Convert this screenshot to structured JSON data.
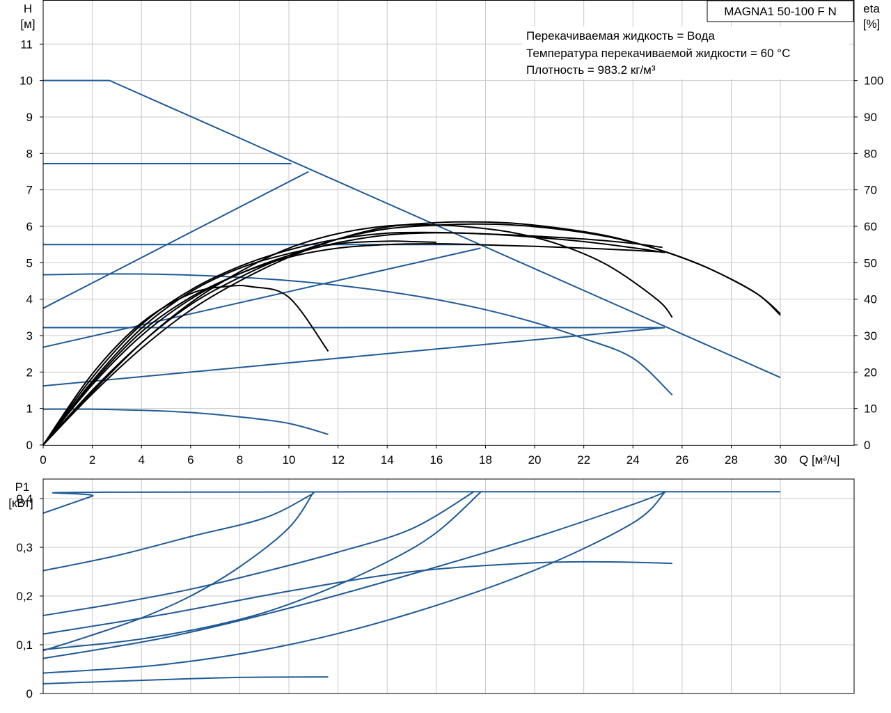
{
  "chart_data": [
    {
      "type": "line",
      "name": "head-efficiency",
      "title": "MAGNA1 50-100 F N",
      "notes": [
        "Перекачиваемая жидкость = Вода",
        "Температура перекачиваемой жидкости = 60 °C",
        "Плотность = 983.2 кг/м³"
      ],
      "xlabel": "Q [м³/ч]",
      "ylabel_left_name": "H",
      "ylabel_left_unit": "[м]",
      "ylabel_right_name": "eta",
      "ylabel_right_unit": "[%]",
      "xlim": [
        0,
        33
      ],
      "ylim_left": [
        0,
        12.2
      ],
      "ylim_right": [
        0,
        122
      ],
      "x_ticks": [
        "0",
        "2",
        "4",
        "6",
        "8",
        "10",
        "12",
        "14",
        "16",
        "18",
        "20",
        "22",
        "24",
        "26",
        "28",
        "30"
      ],
      "y_left_ticks": [
        "0",
        "1",
        "2",
        "3",
        "4",
        "5",
        "6",
        "7",
        "8",
        "9",
        "10",
        "11"
      ],
      "y_right_ticks": [
        "0",
        "10",
        "20",
        "30",
        "40",
        "50",
        "60",
        "70",
        "80",
        "90",
        "100"
      ],
      "grid": true,
      "colors": {
        "head": "#1f5a96",
        "efficiency": "#000000"
      },
      "head_series": [
        {
          "points": [
            [
              0,
              10.0
            ],
            [
              2.7,
              10.0
            ],
            [
              30,
              1.85
            ]
          ]
        },
        {
          "points": [
            [
              0,
              7.72
            ],
            [
              10.1,
              7.72
            ]
          ]
        },
        {
          "points": [
            [
              0,
              5.5
            ],
            [
              17.5,
              5.5
            ]
          ]
        },
        {
          "points": [
            [
              0,
              3.22
            ],
            [
              25.2,
              3.22
            ]
          ]
        },
        {
          "points": [
            [
              0,
              3.75
            ],
            [
              10.8,
              7.5
            ]
          ]
        },
        {
          "points": [
            [
              0,
              2.68
            ],
            [
              17.8,
              5.4
            ]
          ]
        },
        {
          "points": [
            [
              0,
              1.62
            ],
            [
              25.3,
              3.22
            ]
          ]
        },
        {
          "points": [
            [
              0,
              4.67
            ],
            [
              2,
              4.69
            ],
            [
              4,
              4.69
            ],
            [
              6,
              4.66
            ],
            [
              8,
              4.6
            ],
            [
              10,
              4.51
            ],
            [
              12,
              4.38
            ],
            [
              14,
              4.21
            ],
            [
              16,
              3.99
            ],
            [
              18,
              3.71
            ],
            [
              20,
              3.36
            ],
            [
              22,
              2.92
            ],
            [
              24,
              2.38
            ],
            [
              25.6,
              1.37
            ]
          ]
        },
        {
          "points": [
            [
              0,
              0.98
            ],
            [
              2,
              0.98
            ],
            [
              4,
              0.95
            ],
            [
              6,
              0.89
            ],
            [
              8,
              0.77
            ],
            [
              10,
              0.59
            ],
            [
              11.6,
              0.29
            ]
          ]
        }
      ],
      "efficiency_series": [
        {
          "points": [
            [
              0,
              0
            ],
            [
              2,
              19.5
            ],
            [
              4,
              33.5
            ],
            [
              6,
              41.5
            ],
            [
              7.5,
              43.5
            ],
            [
              8.5,
              43.4
            ],
            [
              10,
              40.5
            ],
            [
              11.6,
              25.7
            ]
          ]
        },
        {
          "points": [
            [
              0,
              0
            ],
            [
              2,
              17
            ],
            [
              4,
              31
            ],
            [
              6,
              40.5
            ],
            [
              8,
              47
            ],
            [
              10,
              51.5
            ],
            [
              12,
              54
            ],
            [
              14,
              55
            ],
            [
              16,
              55.2
            ],
            [
              18,
              54.9
            ],
            [
              20,
              54.5
            ],
            [
              22,
              54
            ],
            [
              24,
              53.4
            ],
            [
              25.3,
              52.9
            ]
          ]
        },
        {
          "points": [
            [
              0,
              0
            ],
            [
              2,
              16.5
            ],
            [
              4,
              30
            ],
            [
              6,
              40
            ],
            [
              8,
              47
            ],
            [
              10,
              52
            ],
            [
              12,
              55.5
            ],
            [
              14,
              57.6
            ],
            [
              16,
              58.2
            ],
            [
              18,
              57.9
            ],
            [
              20,
              57
            ],
            [
              22,
              55.8
            ],
            [
              24,
              54.1
            ],
            [
              25.3,
              52.8
            ]
          ]
        },
        {
          "points": [
            [
              0,
              0
            ],
            [
              2,
              15
            ],
            [
              4,
              28
            ],
            [
              6,
              38.5
            ],
            [
              8,
              46
            ],
            [
              10,
              52
            ],
            [
              12,
              56.5
            ],
            [
              14,
              59.3
            ],
            [
              16,
              60.3
            ],
            [
              17.5,
              60.6
            ],
            [
              19,
              60.4
            ],
            [
              21,
              59.2
            ],
            [
              23,
              57.1
            ],
            [
              25,
              53.7
            ],
            [
              27,
              48.7
            ],
            [
              29,
              41.7
            ],
            [
              30,
              36
            ]
          ]
        },
        {
          "points": [
            [
              0,
              0
            ],
            [
              2,
              14
            ],
            [
              4,
              26.5
            ],
            [
              6,
              37
            ],
            [
              8,
              45
            ],
            [
              10,
              51.5
            ],
            [
              12,
              56.5
            ],
            [
              14,
              59.8
            ],
            [
              16,
              61
            ],
            [
              17.5,
              61.2
            ],
            [
              19,
              60.9
            ],
            [
              21,
              59.5
            ],
            [
              23,
              57.3
            ],
            [
              25,
              53.7
            ],
            [
              27,
              48.7
            ],
            [
              29,
              41.7
            ],
            [
              30,
              35.6
            ]
          ]
        },
        {
          "points": [
            [
              0,
              0
            ],
            [
              2,
              14.5
            ],
            [
              4,
              28
            ],
            [
              6,
              39
            ],
            [
              8,
              47.5
            ],
            [
              10,
              54
            ],
            [
              12,
              58
            ],
            [
              14,
              60.1
            ],
            [
              15.5,
              60.4
            ],
            [
              17,
              60
            ],
            [
              19,
              58.4
            ],
            [
              21,
              55
            ],
            [
              23,
              49.2
            ],
            [
              25,
              39.8
            ],
            [
              25.6,
              35
            ]
          ]
        },
        {
          "points": [
            [
              0,
              0
            ],
            [
              2,
              17.5
            ],
            [
              4,
              32
            ],
            [
              6,
              42
            ],
            [
              8,
              48.5
            ],
            [
              10,
              52.5
            ],
            [
              12,
              55.2
            ],
            [
              14,
              55.9
            ],
            [
              15,
              55.8
            ],
            [
              16,
              55.6
            ]
          ]
        },
        {
          "points": [
            [
              0,
              0
            ],
            [
              2,
              18.5
            ],
            [
              4,
              33
            ],
            [
              6,
              42.5
            ],
            [
              8,
              49
            ],
            [
              10,
              53.5
            ],
            [
              12,
              56.5
            ],
            [
              14,
              58.1
            ],
            [
              16,
              58.3
            ],
            [
              18,
              57.9
            ],
            [
              20,
              57.3
            ],
            [
              22,
              56.5
            ],
            [
              24,
              55.3
            ],
            [
              25.2,
              54.2
            ]
          ]
        }
      ]
    },
    {
      "type": "line",
      "name": "power",
      "ylabel_name": "P1",
      "ylabel_unit": "[кВт]",
      "xlim": [
        0,
        33
      ],
      "ylim": [
        0,
        0.44
      ],
      "y_ticks": [
        "0",
        "0,1",
        "0,2",
        "0,3",
        "0,4"
      ],
      "grid": true,
      "color": "#1f5a96",
      "series": [
        {
          "points": [
            [
              0,
              0.37
            ],
            [
              2,
              0.405
            ],
            [
              2.5,
              0.413
            ],
            [
              30,
              0.414
            ]
          ]
        },
        {
          "points": [
            [
              0,
              0.252
            ],
            [
              3,
              0.283
            ],
            [
              6,
              0.322
            ],
            [
              9,
              0.36
            ],
            [
              10.8,
              0.405
            ],
            [
              11,
              0.413
            ]
          ]
        },
        {
          "points": [
            [
              0,
              0.088
            ],
            [
              2,
              0.12
            ],
            [
              4,
              0.155
            ],
            [
              6,
              0.2
            ],
            [
              8,
              0.26
            ],
            [
              10,
              0.34
            ],
            [
              11,
              0.413
            ]
          ]
        },
        {
          "points": [
            [
              0,
              0.16
            ],
            [
              3,
              0.185
            ],
            [
              6,
              0.214
            ],
            [
              9,
              0.25
            ],
            [
              12,
              0.29
            ],
            [
              15,
              0.338
            ],
            [
              17.5,
              0.413
            ]
          ]
        },
        {
          "points": [
            [
              0,
              0.09
            ],
            [
              4,
              0.112
            ],
            [
              8,
              0.152
            ],
            [
              11,
              0.202
            ],
            [
              14,
              0.27
            ],
            [
              16,
              0.33
            ],
            [
              17.8,
              0.413
            ]
          ]
        },
        {
          "points": [
            [
              0,
              0.122
            ],
            [
              5,
              0.163
            ],
            [
              10,
              0.21
            ],
            [
              15,
              0.25
            ],
            [
              20,
              0.268
            ],
            [
              23,
              0.27
            ],
            [
              25.6,
              0.267
            ]
          ]
        },
        {
          "points": [
            [
              0,
              0.072
            ],
            [
              5,
              0.115
            ],
            [
              10,
              0.175
            ],
            [
              15,
              0.245
            ],
            [
              20,
              0.32
            ],
            [
              24,
              0.388
            ],
            [
              25.3,
              0.413
            ]
          ]
        },
        {
          "points": [
            [
              0,
              0.042
            ],
            [
              5,
              0.06
            ],
            [
              10,
              0.1
            ],
            [
              15,
              0.165
            ],
            [
              20,
              0.253
            ],
            [
              24,
              0.35
            ],
            [
              25.3,
              0.413
            ]
          ]
        },
        {
          "points": [
            [
              0,
              0.02
            ],
            [
              4,
              0.027
            ],
            [
              8,
              0.033
            ],
            [
              11.6,
              0.034
            ]
          ]
        }
      ]
    }
  ]
}
